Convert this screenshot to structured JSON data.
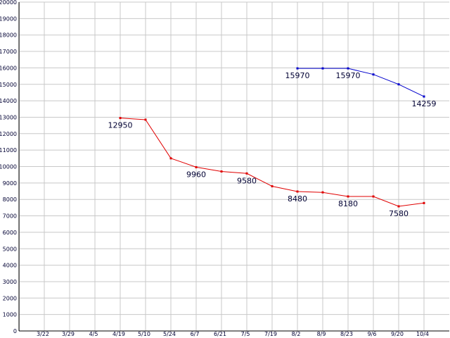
{
  "chart_data": {
    "type": "line",
    "title": "",
    "xlabel": "",
    "ylabel": "",
    "categories": [
      "3/22",
      "3/29",
      "4/5",
      "4/19",
      "5/10",
      "5/24",
      "6/7",
      "6/21",
      "7/5",
      "7/19",
      "8/2",
      "8/9",
      "8/23",
      "9/6",
      "9/20",
      "10/4"
    ],
    "ylim": [
      0,
      20000
    ],
    "y_ticks": [
      0,
      1000,
      2000,
      3000,
      4000,
      5000,
      6000,
      7000,
      8000,
      9000,
      10000,
      11000,
      12000,
      13000,
      14000,
      15000,
      16000,
      17000,
      18000,
      19000,
      20000
    ],
    "y_tick_labels": [
      "0",
      "1000",
      "2000",
      "3000",
      "4000",
      "5000",
      "6000",
      "7000",
      "8000",
      "9000",
      "10000",
      "11000",
      "12000",
      "13000",
      "14000",
      "15000",
      "16000",
      "17000",
      "18000",
      "19000",
      "20000"
    ],
    "grid": true,
    "series": [
      {
        "color": "#e00000",
        "values": [
          null,
          null,
          null,
          12950,
          12850,
          10500,
          9960,
          9700,
          9580,
          8800,
          8480,
          8430,
          8180,
          8180,
          7580,
          7780
        ],
        "labels": [
          null,
          null,
          null,
          "12950",
          null,
          null,
          "9960",
          null,
          "9580",
          null,
          "8480",
          null,
          "8180",
          null,
          "7580",
          null
        ]
      },
      {
        "color": "#0000cc",
        "values": [
          null,
          null,
          null,
          null,
          null,
          null,
          null,
          null,
          null,
          null,
          15970,
          15970,
          15970,
          15600,
          15000,
          14259
        ],
        "labels": [
          null,
          null,
          null,
          null,
          null,
          null,
          null,
          null,
          null,
          null,
          "15970",
          null,
          "15970",
          null,
          null,
          "14259"
        ]
      }
    ]
  }
}
